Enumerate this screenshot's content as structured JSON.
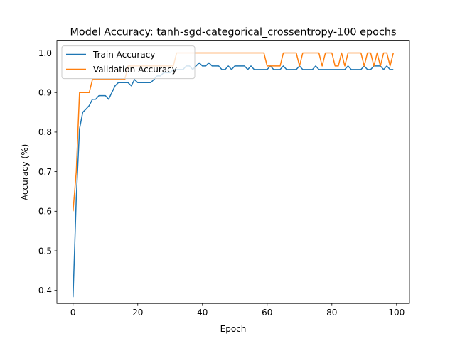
{
  "chart_data": {
    "type": "line",
    "title": "Model Accuracy: tanh-sgd-categorical_crossentropy-100 epochs",
    "xlabel": "Epoch",
    "ylabel": "Accuracy (%)",
    "xlim": [
      -5,
      104
    ],
    "ylim": [
      0.3668,
      1.0304
    ],
    "xticks": [
      0,
      20,
      40,
      60,
      80,
      100
    ],
    "yticks": [
      0.4,
      0.5,
      0.6,
      0.7,
      0.8,
      0.9,
      1.0
    ],
    "grid": false,
    "legend_position": "top-left",
    "colors": {
      "train": "#1f77b4",
      "validation": "#ff7f0e"
    },
    "series": [
      {
        "name": "Train Accuracy",
        "color": "#1f77b4",
        "x": [
          0,
          1,
          2,
          3,
          4,
          5,
          6,
          7,
          8,
          9,
          10,
          11,
          12,
          13,
          14,
          15,
          16,
          17,
          18,
          19,
          20,
          21,
          22,
          23,
          24,
          25,
          26,
          27,
          28,
          29,
          30,
          31,
          32,
          33,
          34,
          35,
          36,
          37,
          38,
          39,
          40,
          41,
          42,
          43,
          44,
          45,
          46,
          47,
          48,
          49,
          50,
          51,
          52,
          53,
          54,
          55,
          56,
          57,
          58,
          59,
          60,
          61,
          62,
          63,
          64,
          65,
          66,
          67,
          68,
          69,
          70,
          71,
          72,
          73,
          74,
          75,
          76,
          77,
          78,
          79,
          80,
          81,
          82,
          83,
          84,
          85,
          86,
          87,
          88,
          89,
          90,
          91,
          92,
          93,
          94,
          95,
          96,
          97,
          98,
          99
        ],
        "values": [
          0.383,
          0.633,
          0.808,
          0.85,
          0.858,
          0.867,
          0.883,
          0.883,
          0.892,
          0.892,
          0.892,
          0.883,
          0.9,
          0.917,
          0.925,
          0.925,
          0.925,
          0.925,
          0.917,
          0.933,
          0.925,
          0.925,
          0.925,
          0.925,
          0.925,
          0.933,
          0.942,
          0.942,
          0.95,
          0.95,
          0.95,
          0.958,
          0.958,
          0.958,
          0.958,
          0.967,
          0.967,
          0.958,
          0.967,
          0.975,
          0.967,
          0.967,
          0.975,
          0.967,
          0.967,
          0.967,
          0.958,
          0.958,
          0.967,
          0.958,
          0.967,
          0.967,
          0.967,
          0.967,
          0.958,
          0.967,
          0.958,
          0.958,
          0.958,
          0.958,
          0.958,
          0.967,
          0.958,
          0.958,
          0.958,
          0.967,
          0.958,
          0.958,
          0.958,
          0.958,
          0.967,
          0.958,
          0.958,
          0.958,
          0.958,
          0.967,
          0.958,
          0.958,
          0.958,
          0.958,
          0.958,
          0.958,
          0.958,
          0.958,
          0.958,
          0.967,
          0.958,
          0.958,
          0.958,
          0.958,
          0.967,
          0.958,
          0.958,
          0.967,
          0.967,
          0.967,
          0.958,
          0.967,
          0.958,
          0.958
        ]
      },
      {
        "name": "Validation Accuracy",
        "color": "#ff7f0e",
        "x": [
          0,
          1,
          2,
          3,
          4,
          5,
          6,
          7,
          8,
          9,
          10,
          11,
          12,
          13,
          14,
          15,
          16,
          17,
          18,
          19,
          20,
          21,
          22,
          23,
          24,
          25,
          26,
          27,
          28,
          29,
          30,
          31,
          32,
          33,
          34,
          35,
          36,
          37,
          38,
          39,
          40,
          41,
          42,
          43,
          44,
          45,
          46,
          47,
          48,
          49,
          50,
          51,
          52,
          53,
          54,
          55,
          56,
          57,
          58,
          59,
          60,
          61,
          62,
          63,
          64,
          65,
          66,
          67,
          68,
          69,
          70,
          71,
          72,
          73,
          74,
          75,
          76,
          77,
          78,
          79,
          80,
          81,
          82,
          83,
          84,
          85,
          86,
          87,
          88,
          89,
          90,
          91,
          92,
          93,
          94,
          95,
          96,
          97,
          98,
          99
        ],
        "values": [
          0.6,
          0.7,
          0.9,
          0.9,
          0.9,
          0.9,
          0.933,
          0.933,
          0.933,
          0.933,
          0.933,
          0.933,
          0.933,
          0.933,
          0.933,
          0.933,
          0.933,
          0.967,
          0.967,
          0.967,
          0.967,
          0.967,
          0.967,
          0.967,
          0.967,
          0.967,
          0.967,
          0.967,
          0.967,
          0.967,
          0.967,
          0.967,
          1.0,
          1.0,
          1.0,
          1.0,
          1.0,
          1.0,
          1.0,
          1.0,
          1.0,
          1.0,
          1.0,
          1.0,
          1.0,
          1.0,
          1.0,
          1.0,
          1.0,
          1.0,
          1.0,
          1.0,
          1.0,
          1.0,
          1.0,
          1.0,
          1.0,
          1.0,
          1.0,
          1.0,
          0.967,
          0.967,
          0.967,
          0.967,
          0.967,
          1.0,
          1.0,
          1.0,
          1.0,
          1.0,
          0.967,
          1.0,
          1.0,
          1.0,
          1.0,
          1.0,
          1.0,
          0.967,
          1.0,
          1.0,
          1.0,
          0.967,
          0.967,
          1.0,
          0.967,
          1.0,
          1.0,
          1.0,
          1.0,
          1.0,
          0.967,
          1.0,
          1.0,
          0.967,
          1.0,
          0.967,
          1.0,
          1.0,
          0.967,
          1.0
        ]
      }
    ]
  }
}
